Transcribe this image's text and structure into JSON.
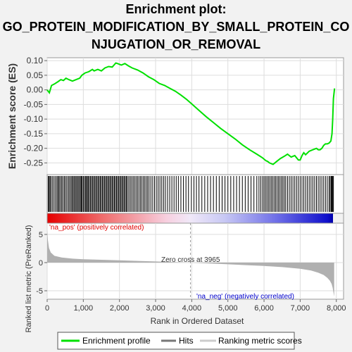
{
  "title_lines": [
    "Enrichment plot:",
    "GO_PROTEIN_MODIFICATION_BY_SMALL_PROTEIN_CO",
    "NJUGATION_OR_REMOVAL"
  ],
  "chart_data": {
    "type": "line",
    "top_panel": {
      "ylabel": "Enrichment score (ES)",
      "ylim": [
        -0.29,
        0.11
      ],
      "yticks": [
        "0.10",
        "0.05",
        "0.00",
        "-0.05",
        "-0.10",
        "-0.15",
        "-0.20",
        "-0.25"
      ],
      "ytick_values": [
        0.1,
        0.05,
        0.0,
        -0.05,
        -0.1,
        -0.15,
        -0.2,
        -0.25
      ],
      "series": [
        {
          "name": "Enrichment profile",
          "color": "#00e000",
          "x": [
            0,
            60,
            120,
            200,
            300,
            380,
            450,
            520,
            600,
            700,
            800,
            900,
            960,
            1050,
            1150,
            1250,
            1300,
            1400,
            1500,
            1600,
            1700,
            1800,
            1900,
            1950,
            2050,
            2150,
            2250,
            2350,
            2500,
            2650,
            2800,
            2950,
            3100,
            3250,
            3400,
            3550,
            3700,
            3850,
            4000,
            4200,
            4400,
            4600,
            4800,
            5000,
            5200,
            5400,
            5600,
            5800,
            5950,
            6050,
            6100,
            6150,
            6250,
            6350,
            6450,
            6550,
            6650,
            6750,
            6850,
            6950,
            7000,
            7050,
            7100,
            7150,
            7250,
            7350,
            7450,
            7500,
            7550,
            7600,
            7650,
            7700,
            7750,
            7800,
            7850,
            7880,
            7900,
            7920,
            7950
          ],
          "y": [
            0.0,
            -0.01,
            0.015,
            0.02,
            0.028,
            0.035,
            0.032,
            0.04,
            0.035,
            0.03,
            0.035,
            0.04,
            0.05,
            0.058,
            0.062,
            0.07,
            0.065,
            0.07,
            0.065,
            0.075,
            0.08,
            0.078,
            0.092,
            0.09,
            0.085,
            0.09,
            0.082,
            0.075,
            0.068,
            0.058,
            0.045,
            0.035,
            0.022,
            0.015,
            0.005,
            -0.005,
            -0.018,
            -0.032,
            -0.048,
            -0.07,
            -0.092,
            -0.112,
            -0.132,
            -0.15,
            -0.168,
            -0.188,
            -0.205,
            -0.22,
            -0.232,
            -0.242,
            -0.245,
            -0.25,
            -0.255,
            -0.245,
            -0.235,
            -0.228,
            -0.22,
            -0.23,
            -0.225,
            -0.24,
            -0.24,
            -0.225,
            -0.215,
            -0.222,
            -0.21,
            -0.205,
            -0.2,
            -0.205,
            -0.205,
            -0.2,
            -0.19,
            -0.185,
            -0.185,
            -0.182,
            -0.175,
            -0.15,
            -0.1,
            -0.03,
            0.005
          ]
        }
      ]
    },
    "hits_panel": {
      "label": "Hits",
      "hit_positions": [
        30,
        55,
        80,
        110,
        150,
        190,
        230,
        270,
        300,
        330,
        360,
        400,
        430,
        470,
        500,
        540,
        580,
        610,
        650,
        680,
        710,
        740,
        770,
        800,
        830,
        860,
        890,
        920,
        945,
        970,
        1000,
        1030,
        1060,
        1090,
        1110,
        1140,
        1170,
        1200,
        1230,
        1260,
        1290,
        1320,
        1350,
        1380,
        1410,
        1440,
        1470,
        1500,
        1530,
        1560,
        1590,
        1620,
        1650,
        1680,
        1710,
        1740,
        1770,
        1800,
        1830,
        1860,
        1890,
        1920,
        1950,
        1980,
        2010,
        2040,
        2070,
        2100,
        2130,
        2160,
        2190,
        2220,
        2260,
        2300,
        2340,
        2380,
        2420,
        2460,
        2500,
        2540,
        2580,
        2620,
        2660,
        2700,
        2740,
        2780,
        2820,
        2870,
        2920,
        2970,
        3020,
        3070,
        3120,
        3170,
        3220,
        3270,
        3330,
        3390,
        3450,
        3510,
        3570,
        3630,
        3700,
        3770,
        3840,
        3910,
        3990,
        4060,
        4130,
        4200,
        4280,
        4360,
        4440,
        4520,
        4600,
        4680,
        4760,
        4840,
        4920,
        5000,
        5080,
        5160,
        5240,
        5320,
        5400,
        5480,
        5560,
        5640,
        5720,
        5800,
        5860,
        5910,
        5960,
        6000,
        6040,
        6080,
        6120,
        6160,
        6200,
        6240,
        6280,
        6320,
        6360,
        6400,
        6440,
        6480,
        6520,
        6560,
        6600,
        6650,
        6700,
        6750,
        6800,
        6850,
        6900,
        6950,
        7000,
        7050,
        7100,
        7150,
        7200,
        7250,
        7300,
        7350,
        7400,
        7450,
        7500,
        7550,
        7600,
        7650,
        7700,
        7750,
        7800,
        7830,
        7860,
        7880,
        7900,
        7920
      ]
    },
    "bottom_panel": {
      "ylabel": "Ranked list metric (PreRanked)",
      "xlabel": "Rank in Ordered Dataset",
      "ylim": [
        -6.5,
        7.0
      ],
      "yticks": [
        "5",
        "0",
        "-5"
      ],
      "ytick_values": [
        5,
        0,
        -5
      ],
      "xlim": [
        0,
        8200
      ],
      "xticks": [
        "0",
        "1,000",
        "2,000",
        "3,000",
        "4,000",
        "5,000",
        "6,000",
        "7,000",
        "8,000"
      ],
      "xtick_values": [
        0,
        1000,
        2000,
        3000,
        4000,
        5000,
        6000,
        7000,
        8000
      ],
      "metric_x": [
        0,
        20,
        50,
        100,
        200,
        400,
        700,
        1000,
        1500,
        2000,
        2500,
        3000,
        3500,
        3965,
        4500,
        5000,
        5500,
        6000,
        6500,
        7000,
        7300,
        7500,
        7650,
        7750,
        7820,
        7870,
        7900,
        7920,
        7940
      ],
      "metric_y": [
        5.8,
        4.0,
        2.6,
        1.8,
        1.2,
        0.9,
        0.7,
        0.6,
        0.5,
        0.4,
        0.3,
        0.2,
        0.1,
        0.0,
        -0.15,
        -0.3,
        -0.45,
        -0.6,
        -0.8,
        -1.1,
        -1.4,
        -1.8,
        -2.2,
        -2.7,
        -3.2,
        -3.8,
        -4.5,
        -5.3,
        -6.0
      ],
      "zero_cross_label": "Zero cross at 3965",
      "zero_cross_x": 3965,
      "pos_label": "'na_pos' (positively correlated)",
      "neg_label": "'na_neg' (negatively correlated)"
    },
    "legend": [
      {
        "label": "Enrichment profile",
        "color": "#00e000"
      },
      {
        "label": "Hits",
        "color": "#777777"
      },
      {
        "label": "Ranking metric scores",
        "color": "#cccccc"
      }
    ],
    "xlim": [
      0,
      8200
    ]
  },
  "colors": {
    "profile": "#00e000",
    "hits": "#000000",
    "pos_label": "#e00000",
    "neg_label": "#0000cc",
    "metric_fill": "#b0b0b0",
    "grid": "#dddddd"
  }
}
